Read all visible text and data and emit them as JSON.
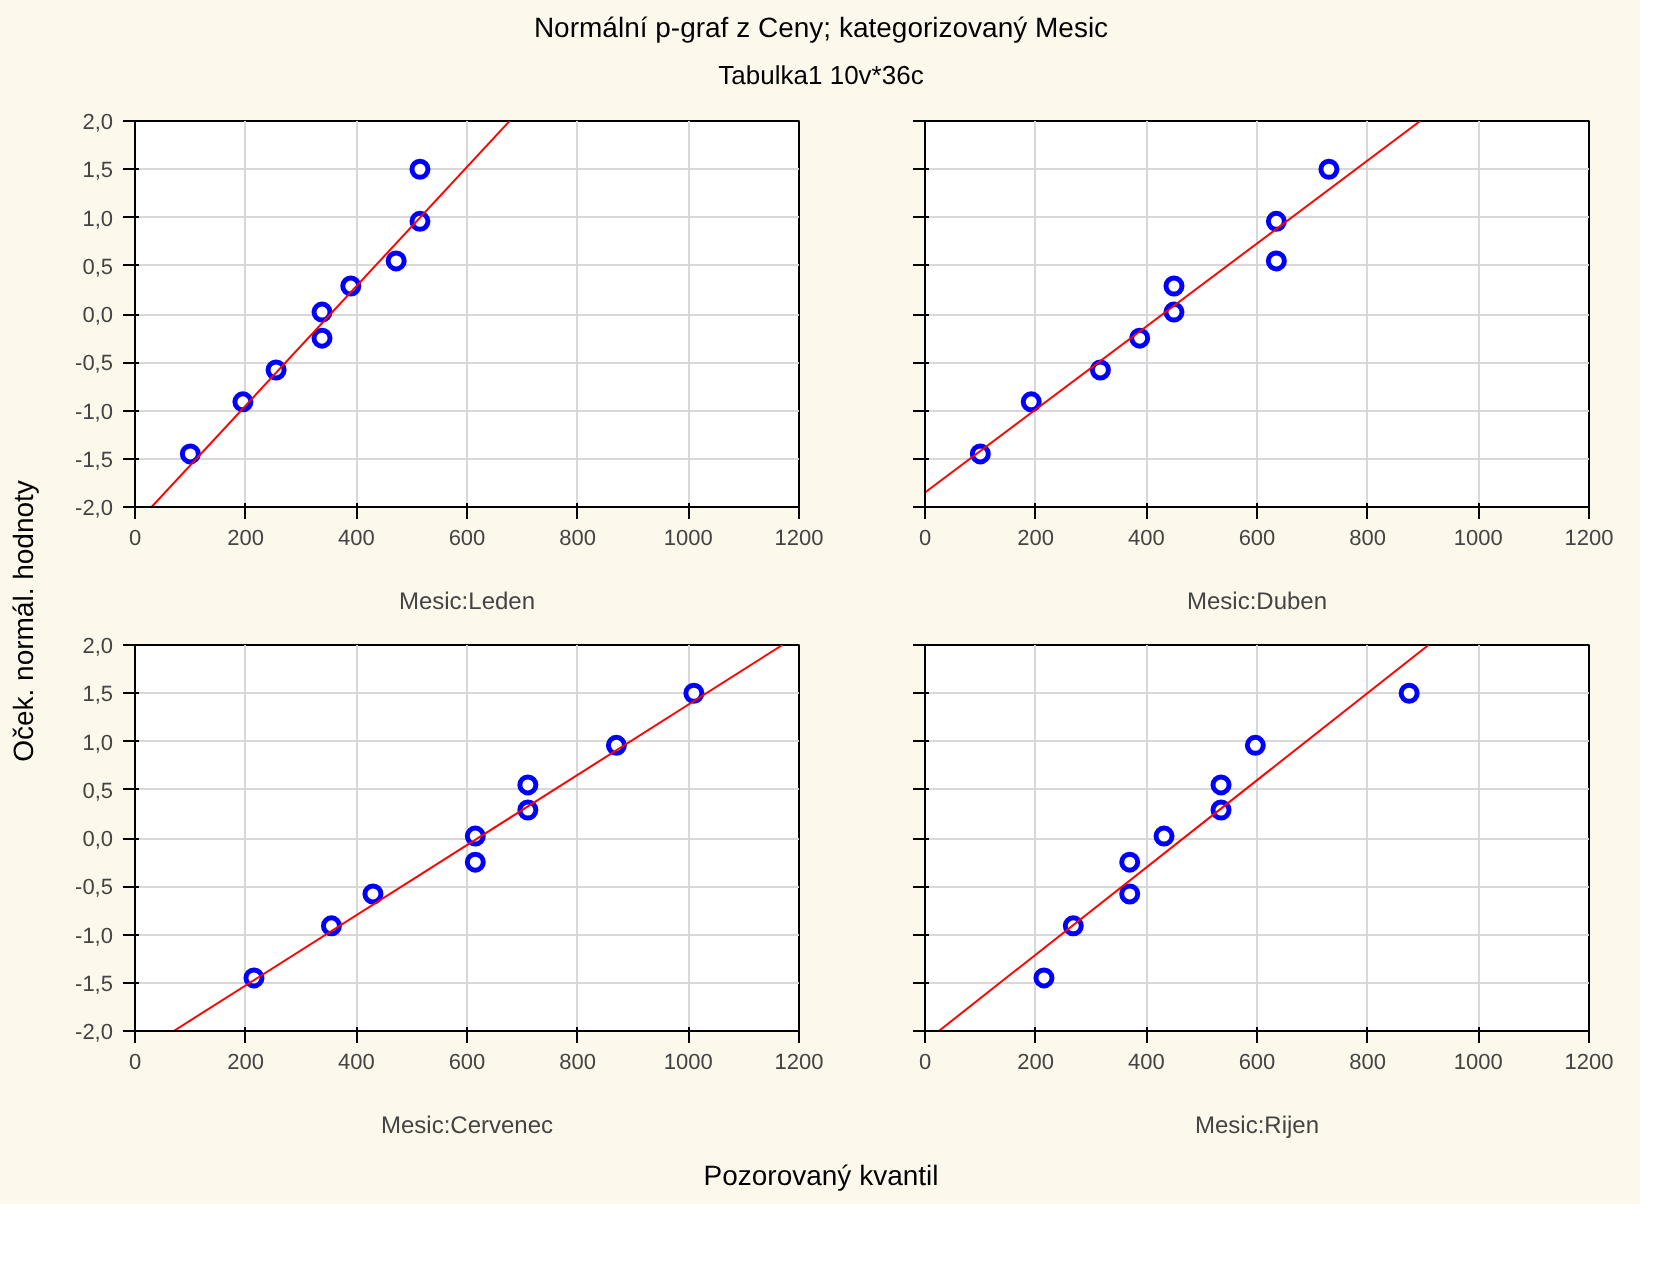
{
  "chart_data": [
    {
      "type": "scatter",
      "title": "Normální p-graf z Ceny; kategorizovaný Mesic",
      "subtitle": "Tabulka1 10v*36c",
      "ylabel": "Oček. normál. hodnoty",
      "annotations": [
        "Pozorovaný kvantil"
      ],
      "xlabel": "Mesic:Leden",
      "grid": true,
      "series": [
        {
          "color": "#0000ff",
          "marker": "circle",
          "x": [
            100,
            195,
            255,
            338,
            338,
            390,
            472,
            515,
            515
          ],
          "values": [
            -1.45,
            -0.91,
            -0.58,
            -0.25,
            0.02,
            0.29,
            0.55,
            0.96,
            1.5
          ]
        },
        {
          "type": "line",
          "color": "#ff0000",
          "x": [
            30,
            677
          ],
          "values": [
            -2,
            2
          ]
        }
      ],
      "xlim": [
        0,
        1200
      ],
      "xticks": [
        0,
        200,
        400,
        600,
        800,
        1000,
        1200
      ],
      "ylim": [
        -2,
        2
      ],
      "yticks": [
        {
          "value": -2,
          "label": "-2,0"
        },
        {
          "value": -1.5,
          "label": "-1,5"
        },
        {
          "value": -1,
          "label": "-1,0"
        },
        {
          "value": -0.5,
          "label": "-0,5"
        },
        {
          "value": 0,
          "label": "0,0"
        },
        {
          "value": 0.5,
          "label": "0,5"
        },
        {
          "value": 1,
          "label": "1,0"
        },
        {
          "value": 1.5,
          "label": "1,5"
        },
        {
          "value": 2,
          "label": "2,0"
        }
      ]
    },
    {
      "type": "scatter",
      "xlabel": "Mesic:Duben",
      "grid": true,
      "tick_labels": "x",
      "series": [
        {
          "color": "#0000ff",
          "marker": "circle",
          "x": [
            100,
            192,
            317,
            388,
            450,
            450,
            635,
            635,
            730
          ],
          "values": [
            -1.45,
            -0.91,
            -0.58,
            -0.25,
            0.02,
            0.29,
            0.55,
            0.96,
            1.5
          ]
        },
        {
          "type": "line",
          "color": "#ff0000",
          "x": [
            0,
            895
          ],
          "values": [
            -1.85,
            2
          ]
        }
      ],
      "xlim": [
        0,
        1200
      ],
      "xticks": [
        0,
        200,
        400,
        600,
        800,
        1000,
        1200
      ],
      "ylim": [
        -2,
        2
      ],
      "yticks": [
        {
          "value": -2,
          "label": null
        },
        {
          "value": -1.5,
          "label": null
        },
        {
          "value": -1,
          "label": null
        },
        {
          "value": -0.5,
          "label": null
        },
        {
          "value": 0,
          "label": null
        },
        {
          "value": 0.5,
          "label": null
        },
        {
          "value": 1,
          "label": null
        },
        {
          "value": 1.5,
          "label": null
        },
        {
          "value": 2,
          "label": null
        }
      ]
    },
    {
      "type": "scatter",
      "xlabel": "Mesic:Cervenec",
      "grid": true,
      "series": [
        {
          "color": "#0000ff",
          "marker": "circle",
          "x": [
            215,
            355,
            430,
            615,
            615,
            710,
            710,
            870,
            1010
          ],
          "values": [
            -1.45,
            -0.91,
            -0.58,
            -0.25,
            0.02,
            0.29,
            0.55,
            0.96,
            1.5
          ]
        },
        {
          "type": "line",
          "color": "#ff0000",
          "x": [
            70,
            1170
          ],
          "values": [
            -2,
            2
          ]
        }
      ],
      "xlim": [
        0,
        1200
      ],
      "xticks": [
        0,
        200,
        400,
        600,
        800,
        1000,
        1200
      ],
      "ylim": [
        -2,
        2
      ],
      "yticks": [
        {
          "value": -2,
          "label": "-2,0"
        },
        {
          "value": -1.5,
          "label": "-1,5"
        },
        {
          "value": -1,
          "label": "-1,0"
        },
        {
          "value": -0.5,
          "label": "-0,5"
        },
        {
          "value": 0,
          "label": "0,0"
        },
        {
          "value": 0.5,
          "label": "0,5"
        },
        {
          "value": 1,
          "label": "1,0"
        },
        {
          "value": 1.5,
          "label": "1,5"
        },
        {
          "value": 2,
          "label": "2,0"
        }
      ]
    },
    {
      "type": "scatter",
      "xlabel": "Mesic:Rijen",
      "grid": true,
      "tick_labels": "x",
      "series": [
        {
          "color": "#0000ff",
          "marker": "circle",
          "x": [
            215,
            268,
            370,
            370,
            432,
            535,
            535,
            597,
            875
          ],
          "values": [
            -1.45,
            -0.91,
            -0.58,
            -0.25,
            0.02,
            0.29,
            0.55,
            0.96,
            1.5
          ]
        },
        {
          "type": "line",
          "color": "#ff0000",
          "x": [
            25,
            910
          ],
          "values": [
            -2,
            2
          ]
        }
      ],
      "xlim": [
        0,
        1200
      ],
      "xticks": [
        0,
        200,
        400,
        600,
        800,
        1000,
        1200
      ],
      "ylim": [
        -2,
        2
      ],
      "yticks": [
        {
          "value": -2,
          "label": null
        },
        {
          "value": -1.5,
          "label": null
        },
        {
          "value": -1,
          "label": null
        },
        {
          "value": -0.5,
          "label": null
        },
        {
          "value": 0,
          "label": null
        },
        {
          "value": 0.5,
          "label": null
        },
        {
          "value": 1,
          "label": null
        },
        {
          "value": 1.5,
          "label": null
        },
        {
          "value": 2,
          "label": null
        }
      ]
    }
  ]
}
